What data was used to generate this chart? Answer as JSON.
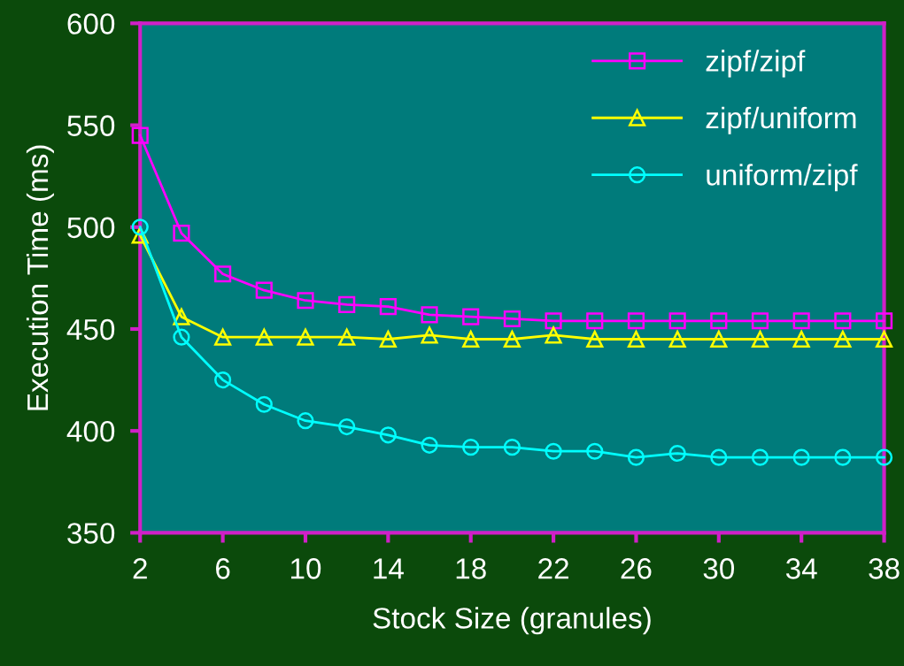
{
  "chart_data": {
    "type": "line",
    "xlabel": "Stock Size (granules)",
    "ylabel": "Execution Time (ms)",
    "x": [
      2,
      4,
      6,
      8,
      10,
      12,
      14,
      16,
      18,
      20,
      22,
      24,
      26,
      28,
      30,
      32,
      34,
      36,
      38
    ],
    "series": [
      {
        "name": "zipf/zipf",
        "color": "#ff00ff",
        "marker": "square",
        "values": [
          545,
          497,
          477,
          469,
          464,
          462,
          461,
          457,
          456,
          455,
          454,
          454,
          454,
          454,
          454,
          454,
          454,
          454,
          454
        ]
      },
      {
        "name": "zipf/uniform",
        "color": "#ffff00",
        "marker": "triangle",
        "values": [
          496,
          456,
          446,
          446,
          446,
          446,
          445,
          447,
          445,
          445,
          447,
          445,
          445,
          445,
          445,
          445,
          445,
          445,
          445
        ]
      },
      {
        "name": "uniform/zipf",
        "color": "#00ffff",
        "marker": "circle",
        "values": [
          500,
          446,
          425,
          413,
          405,
          402,
          398,
          393,
          392,
          392,
          390,
          390,
          387,
          389,
          387,
          387,
          387,
          387,
          387
        ]
      }
    ],
    "xlim": [
      2,
      38
    ],
    "xticks": [
      2,
      6,
      10,
      14,
      18,
      22,
      26,
      30,
      34,
      38
    ],
    "ylim": [
      350,
      600
    ],
    "yticks": [
      350,
      400,
      450,
      500,
      550,
      600
    ],
    "legend": "top right",
    "grid": false,
    "line_style": "solid"
  }
}
